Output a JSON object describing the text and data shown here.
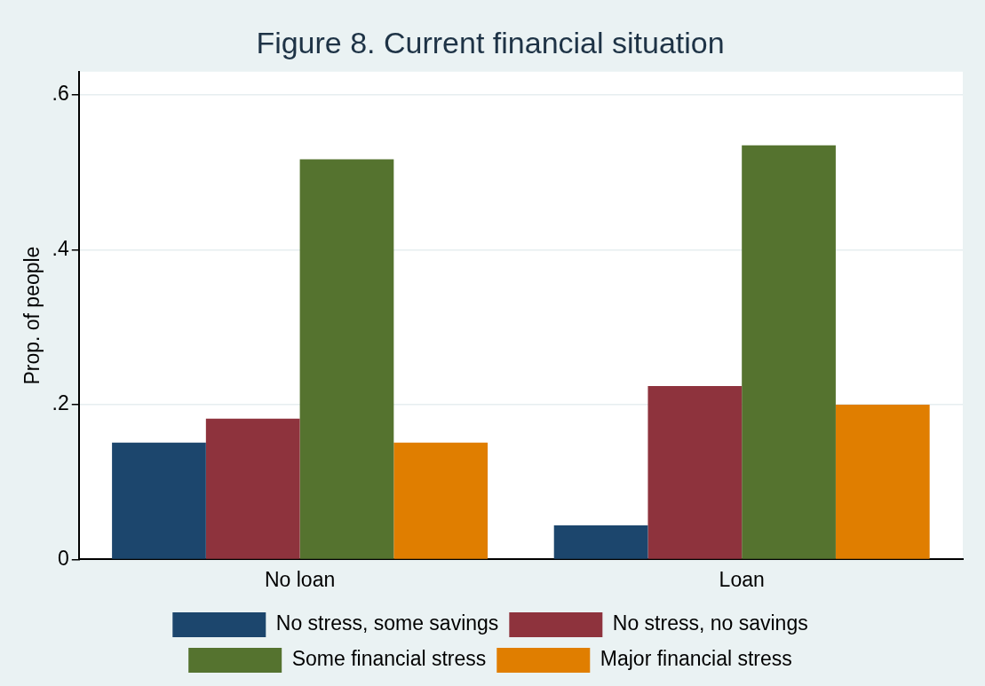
{
  "chart_data": {
    "type": "bar",
    "title": "Figure 8. Current financial situation",
    "ylabel": "Prop. of people",
    "categories": [
      "No loan",
      "Loan"
    ],
    "series": [
      {
        "name": "No stress, some savings",
        "color": "#1c466d",
        "values": [
          0.151,
          0.044
        ]
      },
      {
        "name": "No stress, no savings",
        "color": "#8e333d",
        "values": [
          0.182,
          0.224
        ]
      },
      {
        "name": "Some financial stress",
        "color": "#55732f",
        "values": [
          0.517,
          0.535
        ]
      },
      {
        "name": "Major financial stress",
        "color": "#e07e00",
        "values": [
          0.151,
          0.2
        ]
      }
    ],
    "ylim": [
      0,
      0.63
    ],
    "yticks": [
      0,
      {
        "value": 0.2,
        "label": ".2"
      },
      {
        "value": 0.4,
        "label": ".4"
      },
      {
        "value": 0.6,
        "label": ".6"
      }
    ],
    "grid": "y",
    "legend": "bottom"
  }
}
